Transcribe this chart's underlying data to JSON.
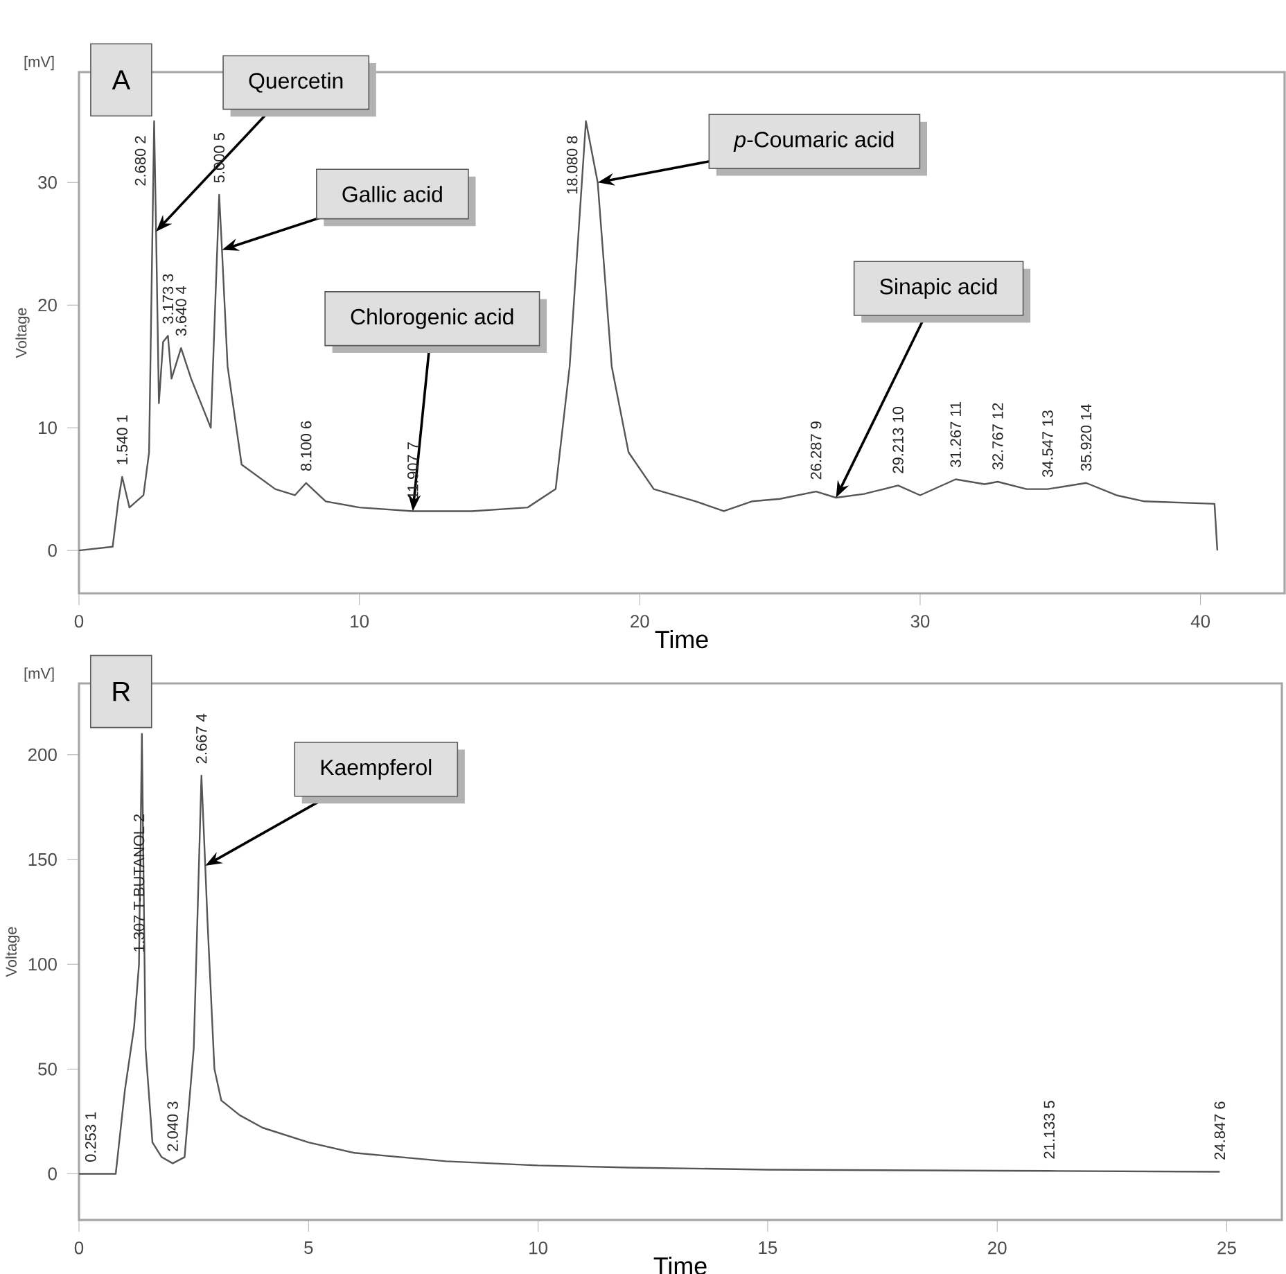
{
  "chart_data": [
    {
      "type": "line",
      "title": "A",
      "xlabel": "Time",
      "ylabel": "Voltage",
      "xlim": [
        0,
        43
      ],
      "ylim": [
        -3.5,
        39
      ],
      "xticks": [
        0,
        10,
        20,
        30,
        40
      ],
      "yticks": [
        0,
        10,
        20,
        30
      ],
      "series": [
        {
          "color": "#555555",
          "x": [
            0,
            1.2,
            1.4,
            1.54,
            1.8,
            2.3,
            2.5,
            2.68,
            2.75,
            2.85,
            3.0,
            3.173,
            3.3,
            3.64,
            4.0,
            4.7,
            5.0,
            5.1,
            5.3,
            5.8,
            7.0,
            7.7,
            8.1,
            8.8,
            10,
            11.907,
            14,
            16,
            17.0,
            17.5,
            18.08,
            18.5,
            19.0,
            19.6,
            20.5,
            22,
            23,
            24,
            25,
            26.287,
            27,
            28,
            29.213,
            30,
            31.267,
            32.3,
            32.767,
            33.8,
            34.547,
            35.92,
            37,
            38,
            40.5,
            40.6
          ],
          "values": [
            0,
            0.3,
            4,
            6,
            3.5,
            4.5,
            8,
            35,
            26,
            12,
            17,
            17.5,
            14,
            16.5,
            14,
            10,
            29,
            24.5,
            15,
            7,
            5,
            4.5,
            5.5,
            4,
            3.5,
            3.2,
            3.2,
            3.5,
            5,
            15,
            35,
            30,
            15,
            8,
            5,
            4,
            3.2,
            4,
            4.2,
            4.8,
            4.3,
            4.6,
            5.3,
            4.5,
            5.8,
            5.4,
            5.6,
            5,
            5,
            5.5,
            4.5,
            4,
            3.8,
            0
          ]
        }
      ],
      "annotations": [
        {
          "text": "Quercetin",
          "x": 2.75,
          "y": 26
        },
        {
          "text": "Gallic acid",
          "x": 5.1,
          "y": 24.5
        },
        {
          "text": "Chlorogenic acid",
          "x": 11.907,
          "y": 3.2
        },
        {
          "text": "*p*-Coumaric acid",
          "x": 18.5,
          "y": 30
        },
        {
          "text": "Sinapic acid",
          "x": 27,
          "y": 4.3
        },
        {
          "text": "1.540  1",
          "x": 1.54,
          "y": 6
        },
        {
          "text": "2.680  2",
          "x": 2.68,
          "y": 35
        },
        {
          "text": "3.173  3",
          "x": 3.173,
          "y": 17.5
        },
        {
          "text": "3.640  4",
          "x": 3.64,
          "y": 16.5
        },
        {
          "text": "5.000  5",
          "x": 5.0,
          "y": 29
        },
        {
          "text": "8.100  6",
          "x": 8.1,
          "y": 5.5
        },
        {
          "text": "11.907  7",
          "x": 11.907,
          "y": 3.2
        },
        {
          "text": "18.080  8",
          "x": 18.08,
          "y": 35
        },
        {
          "text": "26.287  9",
          "x": 26.287,
          "y": 4.8
        },
        {
          "text": "29.213  10",
          "x": 29.213,
          "y": 5.3
        },
        {
          "text": "31.267  11",
          "x": 31.267,
          "y": 5.8
        },
        {
          "text": "32.767  12",
          "x": 32.767,
          "y": 5.6
        },
        {
          "text": "34.547  13",
          "x": 34.547,
          "y": 5
        },
        {
          "text": "35.920  14",
          "x": 35.92,
          "y": 5.5
        },
        "[mV]"
      ]
    },
    {
      "type": "line",
      "title": "R",
      "xlabel": "Time",
      "ylabel": "Voltage",
      "xlim": [
        0,
        26.2
      ],
      "ylim": [
        -22,
        234
      ],
      "xticks": [
        0,
        5,
        10,
        15,
        20,
        25
      ],
      "yticks": [
        0,
        50,
        100,
        150,
        200
      ],
      "series": [
        {
          "color": "#555555",
          "x": [
            0,
            0.253,
            0.8,
            1.0,
            1.1,
            1.2,
            1.307,
            1.37,
            1.45,
            1.6,
            1.8,
            2.04,
            2.3,
            2.5,
            2.667,
            2.75,
            2.8,
            2.95,
            3.1,
            3.5,
            4,
            5,
            6,
            7,
            8,
            10,
            12,
            15,
            20,
            21.133,
            24.847
          ],
          "values": [
            0,
            0,
            0,
            40,
            55,
            70,
            100,
            210,
            60,
            15,
            8,
            5,
            8,
            60,
            190,
            147,
            120,
            50,
            35,
            28,
            22,
            15,
            10,
            8,
            6,
            4,
            3,
            2,
            1.5,
            1.4,
            1
          ]
        }
      ],
      "annotations": [
        {
          "text": "Kaempferol",
          "x": 2.75,
          "y": 147
        },
        {
          "text": "0.253  1",
          "x": 0.253,
          "y": 0
        },
        {
          "text": "1.307 T-BUTANOL  2",
          "x": 1.307,
          "y": 100
        },
        {
          "text": "2.040  3",
          "x": 2.04,
          "y": 5
        },
        {
          "text": "2.667  4",
          "x": 2.667,
          "y": 190
        },
        {
          "text": "21.133  5",
          "x": 21.133,
          "y": 1.4
        },
        {
          "text": "24.847  6",
          "x": 24.847,
          "y": 1
        },
        "[mV]"
      ]
    }
  ]
}
